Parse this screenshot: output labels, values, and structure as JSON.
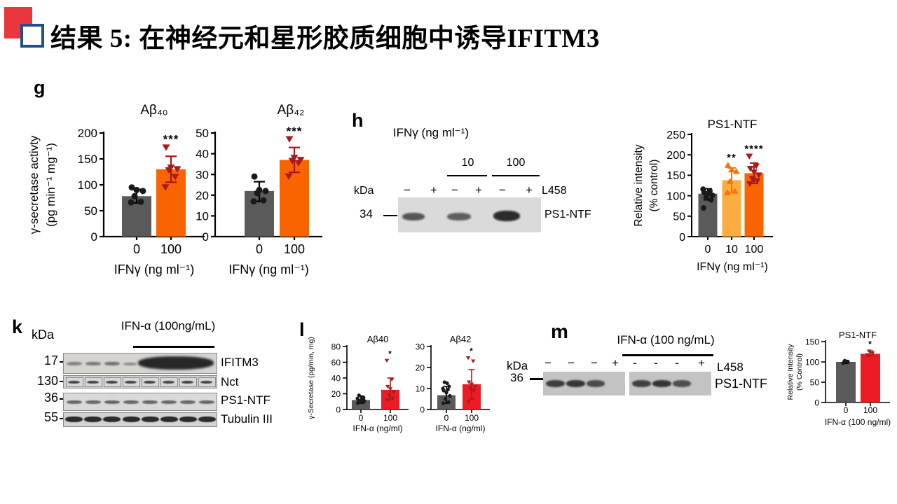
{
  "slide": {
    "title": "结果 5: 在神经元和星形胶质细胞中诱导IFITM3",
    "accent_red": "#E8373D",
    "accent_blue": "#234E8D"
  },
  "panels": {
    "g": {
      "label": "g"
    },
    "h": {
      "label": "h",
      "blot": {
        "header": "IFNγ (ng ml⁻¹)",
        "groups": [
          "10",
          "100"
        ],
        "kda": "kDa",
        "marker": "34",
        "lanes": [
          "−",
          "+",
          "−",
          "+",
          "−",
          "+"
        ],
        "inhibitor": "L458",
        "band": "PS1-NTF"
      }
    },
    "k": {
      "label": "k",
      "kda": "kDa",
      "header": "IFN-α (100ng/mL)",
      "rows": [
        {
          "marker": "17",
          "label": "IFITM3"
        },
        {
          "marker": "130",
          "label": "Nct"
        },
        {
          "marker": "36",
          "label": "PS1-NTF"
        },
        {
          "marker": "55",
          "label": "Tubulin III"
        }
      ]
    },
    "l": {
      "label": "l"
    },
    "m": {
      "label": "m",
      "blot": {
        "header": "IFN-α (100 ng/mL)",
        "kda": "kDa",
        "marker": "36",
        "lanes": [
          "−",
          "−",
          "−",
          "+",
          "-",
          "-",
          "-",
          "+"
        ],
        "inhibitor": "L458",
        "band": "PS1-NTF"
      }
    }
  },
  "chart_data": [
    {
      "key": "g_ab40",
      "type": "bar",
      "title": "Aβ₄₀",
      "ylabel": [
        "γ-secretase activty",
        "(pg min⁻¹ mg⁻¹)"
      ],
      "xlabel": "IFNγ (ng ml⁻¹)",
      "ylim": [
        0,
        200
      ],
      "yticks": [
        0,
        50,
        100,
        150,
        200
      ],
      "categories": [
        "0",
        "100"
      ],
      "bars": [
        {
          "value": 78,
          "color": "#5A5A5A",
          "err": [
            65,
            91
          ],
          "err_color": "#000000",
          "point_shape": "circle",
          "point_color": "#1A1A1A",
          "points": [
            66,
            67,
            78,
            88,
            90,
            95
          ],
          "sig": ""
        },
        {
          "value": 130,
          "color": "#FA6400",
          "err": [
            105,
            155
          ],
          "err_color": "#A81414",
          "point_shape": "tri_down",
          "point_color": "#A81B1B",
          "points": [
            95,
            115,
            128,
            130,
            133,
            172
          ],
          "sig": "***"
        }
      ]
    },
    {
      "key": "g_ab42",
      "type": "bar",
      "title": "Aβ₄₂",
      "ylabel": [],
      "xlabel": "IFNγ (ng ml⁻¹)",
      "ylim": [
        0,
        50
      ],
      "yticks": [
        0,
        10,
        20,
        30,
        40,
        50
      ],
      "categories": [
        "0",
        "100"
      ],
      "bars": [
        {
          "value": 22,
          "color": "#5A5A5A",
          "err": [
            17,
            26.5
          ],
          "err_color": "#000000",
          "point_shape": "circle",
          "point_color": "#1A1A1A",
          "points": [
            17,
            17.5,
            21,
            22,
            22.5,
            29
          ],
          "sig": ""
        },
        {
          "value": 37,
          "color": "#FA6400",
          "err": [
            31,
            43
          ],
          "err_color": "#A81414",
          "point_shape": "tri_down",
          "point_color": "#A81B1B",
          "points": [
            29,
            35.5,
            36.5,
            37,
            38,
            47
          ],
          "sig": "***"
        }
      ]
    },
    {
      "key": "h_ps1",
      "type": "bar",
      "title": "PS1-NTF",
      "ylabel": [
        "Relative intensity",
        "(% control)"
      ],
      "xlabel": "IFNγ (ng ml⁻¹)",
      "ylim": [
        0,
        250
      ],
      "yticks": [
        0,
        50,
        100,
        150,
        200,
        250
      ],
      "categories": [
        "0",
        "10",
        "100"
      ],
      "bars": [
        {
          "value": 105,
          "color": "#5A5A5A",
          "err": [
            90,
            117
          ],
          "err_color": "#000000",
          "point_shape": "circle",
          "point_color": "#1A1A1A",
          "points": [
            70,
            90,
            96,
            101,
            105,
            108,
            112,
            116
          ],
          "sig": ""
        },
        {
          "value": 138,
          "color": "#FBAD42",
          "err": [
            108,
            168
          ],
          "err_color": "#F97306",
          "point_shape": "tri_up",
          "point_color": "#F97306",
          "points": [
            108,
            112,
            136,
            160,
            164,
            175
          ],
          "sig": "**"
        },
        {
          "value": 155,
          "color": "#FA6400",
          "err": [
            130,
            180
          ],
          "err_color": "#A81B1B",
          "point_shape": "tri_down",
          "point_color": "#A81B1B",
          "points": [
            129,
            136,
            141,
            150,
            157,
            166,
            172,
            196
          ],
          "sig": "****"
        }
      ]
    },
    {
      "key": "l_ab40",
      "type": "bar",
      "title": "Aβ40",
      "ylabel": [
        "γ-Secretase (pg/min, mg)"
      ],
      "xlabel": "IFN-α (ng/ml)",
      "ylim": [
        0,
        80
      ],
      "yticks": [
        0,
        20,
        40,
        60,
        80
      ],
      "categories": [
        "0",
        "100"
      ],
      "bars": [
        {
          "value": 12,
          "color": "#5A5A5A",
          "err": [
            8,
            17
          ],
          "err_color": "#000000",
          "point_shape": "circle",
          "point_color": "#1A1A1A",
          "points": [
            8,
            9,
            10,
            11,
            11.5,
            12,
            13,
            14,
            15,
            16,
            18
          ],
          "sig": ""
        },
        {
          "value": 25,
          "color": "#EC1C24",
          "err": [
            12,
            40
          ],
          "err_color": "#A81B1B",
          "point_shape": "tri_down",
          "point_color": "#A81B1B",
          "points": [
            12,
            14,
            18,
            22,
            26,
            29,
            38,
            62
          ],
          "sig": "*"
        }
      ]
    },
    {
      "key": "l_ab42",
      "type": "bar",
      "title": "Aβ42",
      "ylabel": [],
      "xlabel": "IFN-α (ng/ml)",
      "ylim": [
        0,
        30
      ],
      "yticks": [
        0,
        10,
        20,
        30
      ],
      "categories": [
        "0",
        "100"
      ],
      "bars": [
        {
          "value": 6.8,
          "color": "#5A5A5A",
          "err": [
            3,
            11
          ],
          "err_color": "#000000",
          "point_shape": "circle",
          "point_color": "#1A1A1A",
          "points": [
            3,
            3.5,
            5,
            6.5,
            8,
            9,
            9.5,
            10,
            11,
            12.5,
            13
          ],
          "sig": ""
        },
        {
          "value": 12,
          "color": "#EC1C24",
          "err": [
            5,
            19
          ],
          "err_color": "#A81B1B",
          "point_shape": "tri_down",
          "point_color": "#A81B1B",
          "points": [
            3.5,
            9,
            10,
            11,
            12,
            13,
            23,
            24.5
          ],
          "sig": "*"
        }
      ]
    },
    {
      "key": "m_ps1",
      "type": "bar",
      "title": "PS1-NTF",
      "ylabel": [
        "Relative Intensity",
        "(% Control)"
      ],
      "xlabel": "IFN-α (100 ng/ml)",
      "ylim": [
        0,
        150
      ],
      "yticks": [
        0,
        50,
        100,
        150
      ],
      "categories": [
        "0",
        "100"
      ],
      "bars": [
        {
          "value": 100,
          "color": "#5A5A5A",
          "err": [
            96,
            104
          ],
          "err_color": "#000000",
          "point_shape": "circle",
          "point_color": "#1A1A1A",
          "points": [
            97,
            100,
            103
          ],
          "sig": ""
        },
        {
          "value": 120,
          "color": "#EC1C24",
          "err": [
            114,
            127
          ],
          "err_color": "#A81B1B",
          "point_shape": "tri_down",
          "point_color": "#A81B1B",
          "points": [
            117,
            121,
            126
          ],
          "sig": "*"
        }
      ]
    }
  ]
}
